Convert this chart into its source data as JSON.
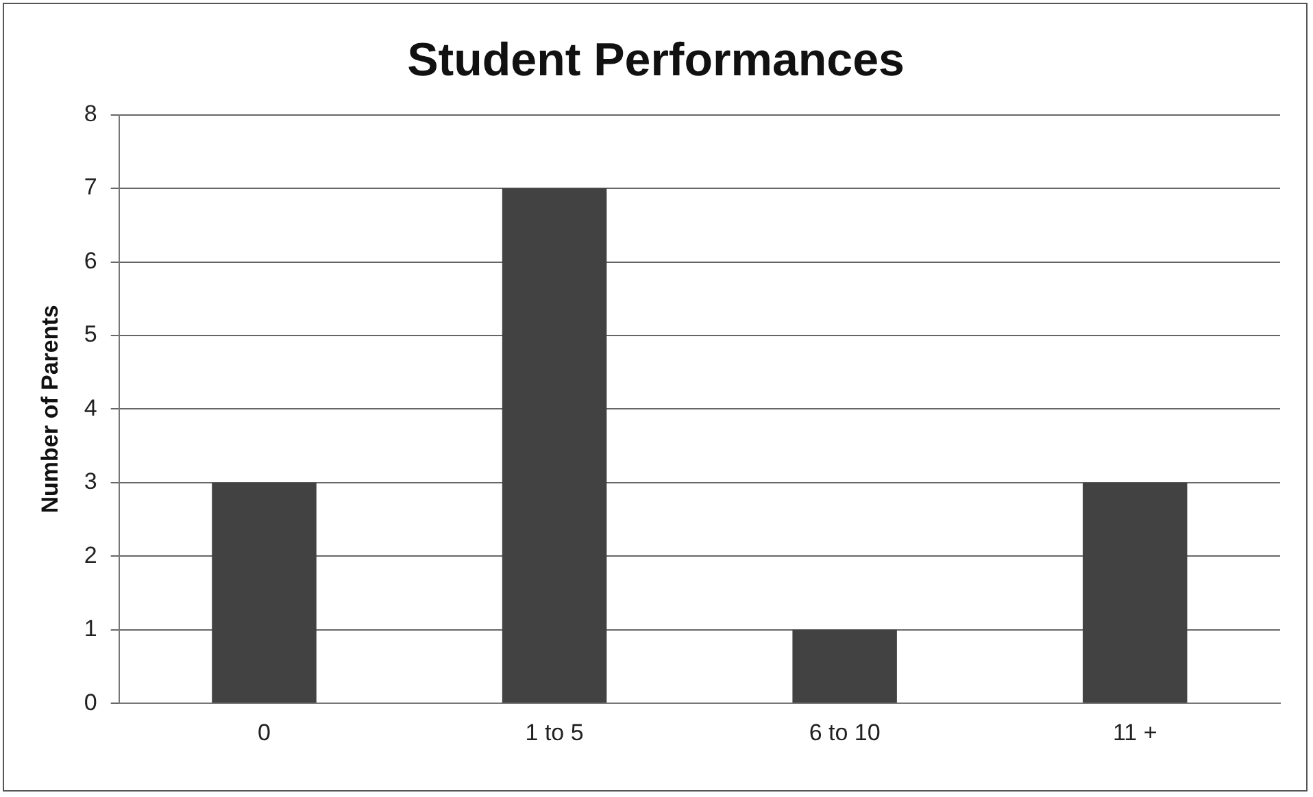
{
  "chart_data": {
    "type": "bar",
    "title": "Student Performances",
    "ylabel": "Number of Parents",
    "categories": [
      "0",
      "1 to 5",
      "6 to 10",
      "11 +"
    ],
    "values": [
      3,
      7,
      1,
      3
    ],
    "color": "#424242",
    "ylim": [
      0,
      8
    ],
    "yticks": [
      0,
      1,
      2,
      3,
      4,
      5,
      6,
      7,
      8
    ],
    "grid": "y",
    "legend": false
  }
}
